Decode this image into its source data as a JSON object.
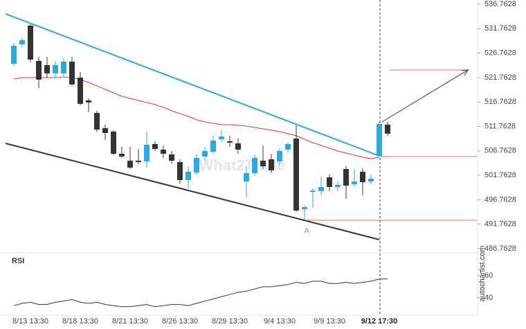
{
  "chart_data": {
    "type": "candlestick",
    "categories": [
      null,
      null,
      "8/13 13:30",
      null,
      null,
      null,
      null,
      null,
      "8/18 13:30",
      null,
      null,
      null,
      null,
      null,
      "8/21 13:30",
      null,
      null,
      null,
      null,
      null,
      "8/26 13:30",
      null,
      null,
      null,
      null,
      null,
      "8/29 13:30",
      null,
      null,
      null,
      null,
      null,
      "9/4 13:30",
      null,
      null,
      null,
      null,
      null,
      "9/9 13:30",
      null,
      null,
      null,
      null,
      null,
      "9/12 17:30",
      null
    ],
    "open": [
      524.58,
      528.54,
      532.37,
      525.15,
      524.3,
      522.6,
      522.6,
      525.0,
      521.75,
      517.07,
      514.52,
      511.41,
      510.7,
      506.17,
      504.75,
      504.75,
      504.61,
      508.15,
      507.02,
      506.02,
      504.47,
      500.78,
      502.34,
      505.6,
      506.59,
      509.14,
      508.72,
      508.29,
      500.5,
      502.2,
      504.75,
      505.03,
      504.61,
      507.02,
      509.28,
      494.83,
      498.38,
      498.52,
      501.35,
      499.37,
      503.05,
      499.93,
      502.48,
      500.5,
      505.74,
      512.11
    ],
    "high": [
      528.83,
      529.82,
      532.65,
      526.0,
      526.0,
      525.15,
      525.71,
      526.0,
      522.88,
      517.5,
      514.95,
      512.11,
      510.98,
      507.58,
      507.58,
      507.16,
      510.7,
      508.72,
      507.87,
      506.73,
      505.03,
      503.62,
      506.17,
      507.58,
      509.85,
      510.98,
      509.85,
      509.28,
      503.62,
      505.88,
      507.87,
      506.17,
      507.3,
      508.57,
      511.97,
      495.68,
      499.08,
      501.49,
      501.92,
      500.5,
      503.62,
      503.05,
      503.19,
      501.92,
      512.68,
      512.68
    ],
    "low": [
      524.15,
      527.98,
      524.86,
      519.62,
      521.75,
      521.75,
      522.03,
      520.05,
      516.08,
      514.66,
      510.7,
      509.0,
      505.88,
      505.32,
      503.05,
      504.04,
      503.33,
      506.73,
      505.32,
      504.18,
      500.08,
      499.08,
      501.92,
      504.75,
      506.17,
      508.57,
      507.58,
      506.17,
      497.24,
      501.63,
      503.05,
      502.2,
      503.9,
      506.45,
      494.27,
      492.43,
      495.12,
      497.67,
      498.52,
      498.52,
      496.96,
      499.37,
      497.67,
      499.93,
      505.6,
      509.85
    ],
    "close": [
      528.26,
      529.39,
      525.43,
      521.32,
      522.6,
      524.3,
      525.0,
      520.33,
      516.36,
      516.65,
      511.12,
      510.41,
      506.17,
      505.6,
      503.33,
      504.47,
      508.01,
      507.16,
      506.17,
      504.75,
      500.78,
      502.48,
      505.32,
      506.73,
      508.86,
      509.71,
      508.43,
      507.02,
      502.2,
      505.32,
      503.62,
      502.77,
      506.73,
      508.15,
      494.55,
      495.26,
      498.66,
      499.37,
      499.37,
      499.79,
      499.65,
      500.5,
      500.36,
      501.07,
      512.26,
      510.27
    ],
    "up_color": "#29a9e0",
    "down_color": "#333333",
    "ma": {
      "color": "#e3342f",
      "values": [
        521.46,
        521.75,
        521.75,
        521.75,
        521.75,
        521.75,
        521.89,
        521.75,
        521.32,
        520.75,
        520.05,
        519.34,
        518.63,
        517.92,
        517.5,
        517.07,
        516.65,
        516.22,
        515.66,
        514.95,
        514.38,
        513.81,
        513.11,
        512.68,
        512.4,
        512.11,
        512.11,
        511.97,
        511.83,
        511.55,
        511.26,
        510.98,
        510.7,
        510.27,
        509.85,
        509.14,
        508.43,
        507.87,
        507.3,
        506.73,
        506.31,
        505.88,
        505.46,
        505.17,
        505.46,
        null
      ]
    },
    "ylim": [
      485.91,
      537.61
    ],
    "yticks": [
      536.7628,
      531.7628,
      526.7628,
      521.7628,
      516.7628,
      511.7628,
      506.7628,
      501.7628,
      496.7628,
      491.7628,
      486.7628
    ],
    "trendlines": [
      {
        "color": "#2aa7dc",
        "points": [
          [
            -1,
            534.78
          ],
          [
            44,
            505.74
          ]
        ]
      },
      {
        "color": "#333333",
        "points": [
          [
            -1,
            508.29
          ],
          [
            44,
            488.6
          ]
        ]
      }
    ],
    "levels": [
      {
        "color": "#e8753a",
        "from": 45.2,
        "to": 54.8,
        "value": 523.3
      },
      {
        "color": "#e8753a",
        "from": 44,
        "to": 55.8,
        "value": 505.6
      },
      {
        "color": "#e8753a",
        "from": 35.1,
        "to": 55.8,
        "value": 492.57
      }
    ],
    "arrow": {
      "color": "#333333",
      "points": [
        [
          44.33,
          512.68
        ],
        [
          54.67,
          523.3
        ]
      ]
    },
    "marker": {
      "text": "A",
      "color": "#e8753a",
      "x": 35.25,
      "value": 491.5
    },
    "now_index": 44,
    "watermark": "What2Trade",
    "source": "autochartist.com",
    "rsi": {
      "label": "RSI",
      "color": "#333333",
      "values": [
        33,
        35,
        36,
        34,
        34,
        36,
        37,
        38.5,
        36,
        35,
        36,
        34,
        33,
        32,
        32,
        33,
        34,
        32,
        33,
        34,
        34,
        33,
        35,
        37,
        39,
        41,
        43,
        45,
        46,
        48,
        50,
        50,
        51,
        52,
        54,
        53,
        55,
        55,
        53,
        53,
        54,
        53,
        54,
        55,
        57,
        57
      ],
      "ylim": [
        25,
        80
      ],
      "yticks": [
        60,
        40
      ]
    }
  }
}
